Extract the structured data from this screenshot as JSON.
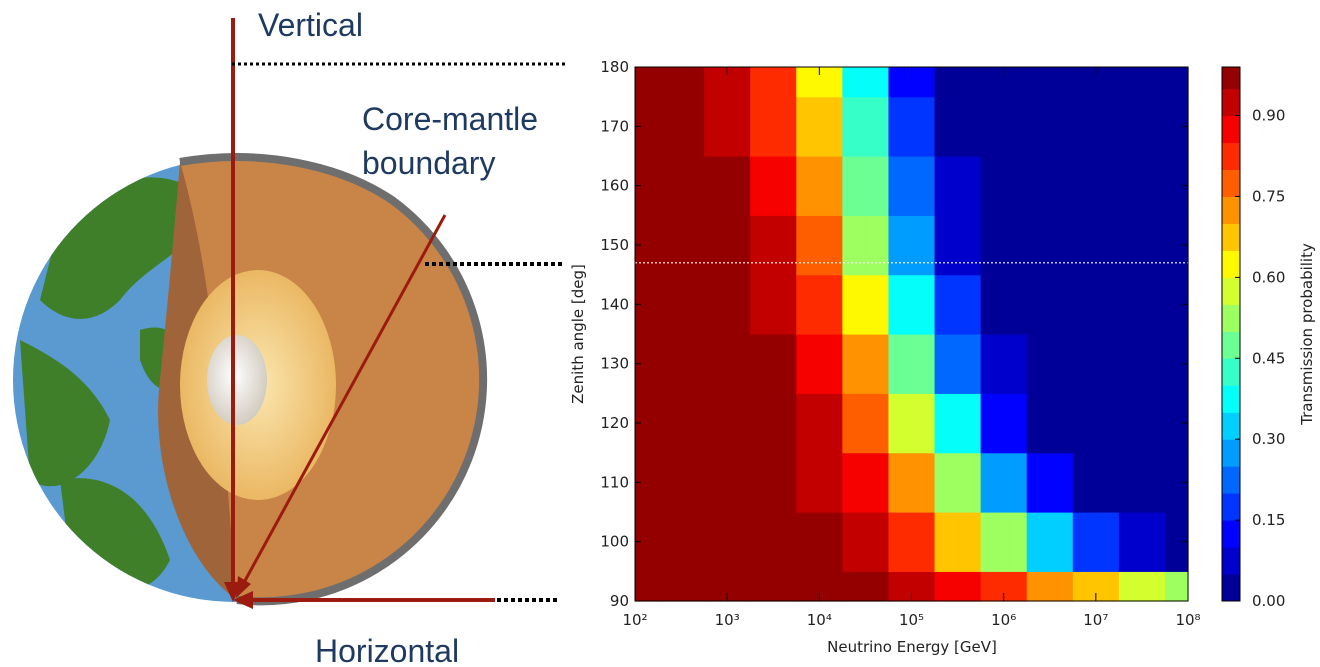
{
  "illustration": {
    "vertical": "Vertical",
    "boundary_line1": "Core-mantle",
    "boundary_line2": "boundary",
    "horizontal": "Horizontal"
  },
  "chart_data": {
    "type": "contour",
    "xlabel": "Neutrino Energy [GeV]",
    "ylabel": "Zenith angle [deg]",
    "colorbar_label": "Transmission probability",
    "xscale": "log",
    "colormap": "jet",
    "xlim": [
      100,
      100000000
    ],
    "ylim": [
      90,
      180
    ],
    "clim": [
      0,
      0.99
    ],
    "xticks": [
      {
        "value": 100,
        "label": "10²"
      },
      {
        "value": 1000,
        "label": "10³"
      },
      {
        "value": 10000,
        "label": "10⁴"
      },
      {
        "value": 100000,
        "label": "10⁵"
      },
      {
        "value": 1000000,
        "label": "10⁶"
      },
      {
        "value": 10000000,
        "label": "10⁷"
      },
      {
        "value": 100000000,
        "label": "10⁸"
      }
    ],
    "yticks": [
      90,
      100,
      110,
      120,
      130,
      140,
      150,
      160,
      170,
      180
    ],
    "cticks": [
      {
        "value": 0,
        "label": "0.00"
      },
      {
        "value": 0.15,
        "label": "0.15"
      },
      {
        "value": 0.3,
        "label": "0.30"
      },
      {
        "value": 0.45,
        "label": "0.45"
      },
      {
        "value": 0.6,
        "label": "0.60"
      },
      {
        "value": 0.75,
        "label": "0.75"
      },
      {
        "value": 0.9,
        "label": "0.90"
      }
    ],
    "levels": [
      0,
      0.05,
      0.1,
      0.15,
      0.2,
      0.25,
      0.3,
      0.35,
      0.4,
      0.45,
      0.5,
      0.55,
      0.6,
      0.65,
      0.7,
      0.75,
      0.8,
      0.85,
      0.9,
      0.95
    ],
    "hline": 147,
    "x": [
      100,
      316,
      1000,
      3162,
      10000,
      31623,
      100000,
      316228,
      1000000,
      3162278,
      10000000,
      31622777,
      100000000
    ],
    "y": [
      90,
      100,
      110,
      120,
      130,
      140,
      150,
      160,
      170,
      180
    ],
    "z": [
      [
        0.99,
        0.99,
        0.99,
        0.99,
        0.98,
        0.97,
        0.94,
        0.88,
        0.8,
        0.72,
        0.65,
        0.58,
        0.53
      ],
      [
        0.99,
        0.99,
        0.99,
        0.98,
        0.96,
        0.92,
        0.83,
        0.68,
        0.5,
        0.3,
        0.15,
        0.06,
        0.02
      ],
      [
        0.99,
        0.99,
        0.99,
        0.97,
        0.93,
        0.85,
        0.7,
        0.5,
        0.28,
        0.1,
        0.02,
        0,
        0
      ],
      [
        0.99,
        0.99,
        0.98,
        0.96,
        0.9,
        0.78,
        0.58,
        0.35,
        0.14,
        0.03,
        0,
        0,
        0
      ],
      [
        0.99,
        0.99,
        0.98,
        0.95,
        0.87,
        0.7,
        0.48,
        0.24,
        0.07,
        0.01,
        0,
        0,
        0
      ],
      [
        0.99,
        0.99,
        0.97,
        0.93,
        0.82,
        0.62,
        0.38,
        0.15,
        0.03,
        0,
        0,
        0,
        0
      ],
      [
        0.99,
        0.99,
        0.96,
        0.9,
        0.76,
        0.54,
        0.28,
        0.08,
        0.01,
        0,
        0,
        0,
        0
      ],
      [
        0.99,
        0.98,
        0.95,
        0.87,
        0.7,
        0.46,
        0.2,
        0.05,
        0.01,
        0,
        0,
        0,
        0
      ],
      [
        0.99,
        0.98,
        0.94,
        0.84,
        0.65,
        0.4,
        0.15,
        0.03,
        0,
        0,
        0,
        0,
        0
      ],
      [
        0.99,
        0.98,
        0.93,
        0.82,
        0.62,
        0.38,
        0.12,
        0.02,
        0,
        0,
        0,
        0,
        0
      ]
    ]
  }
}
